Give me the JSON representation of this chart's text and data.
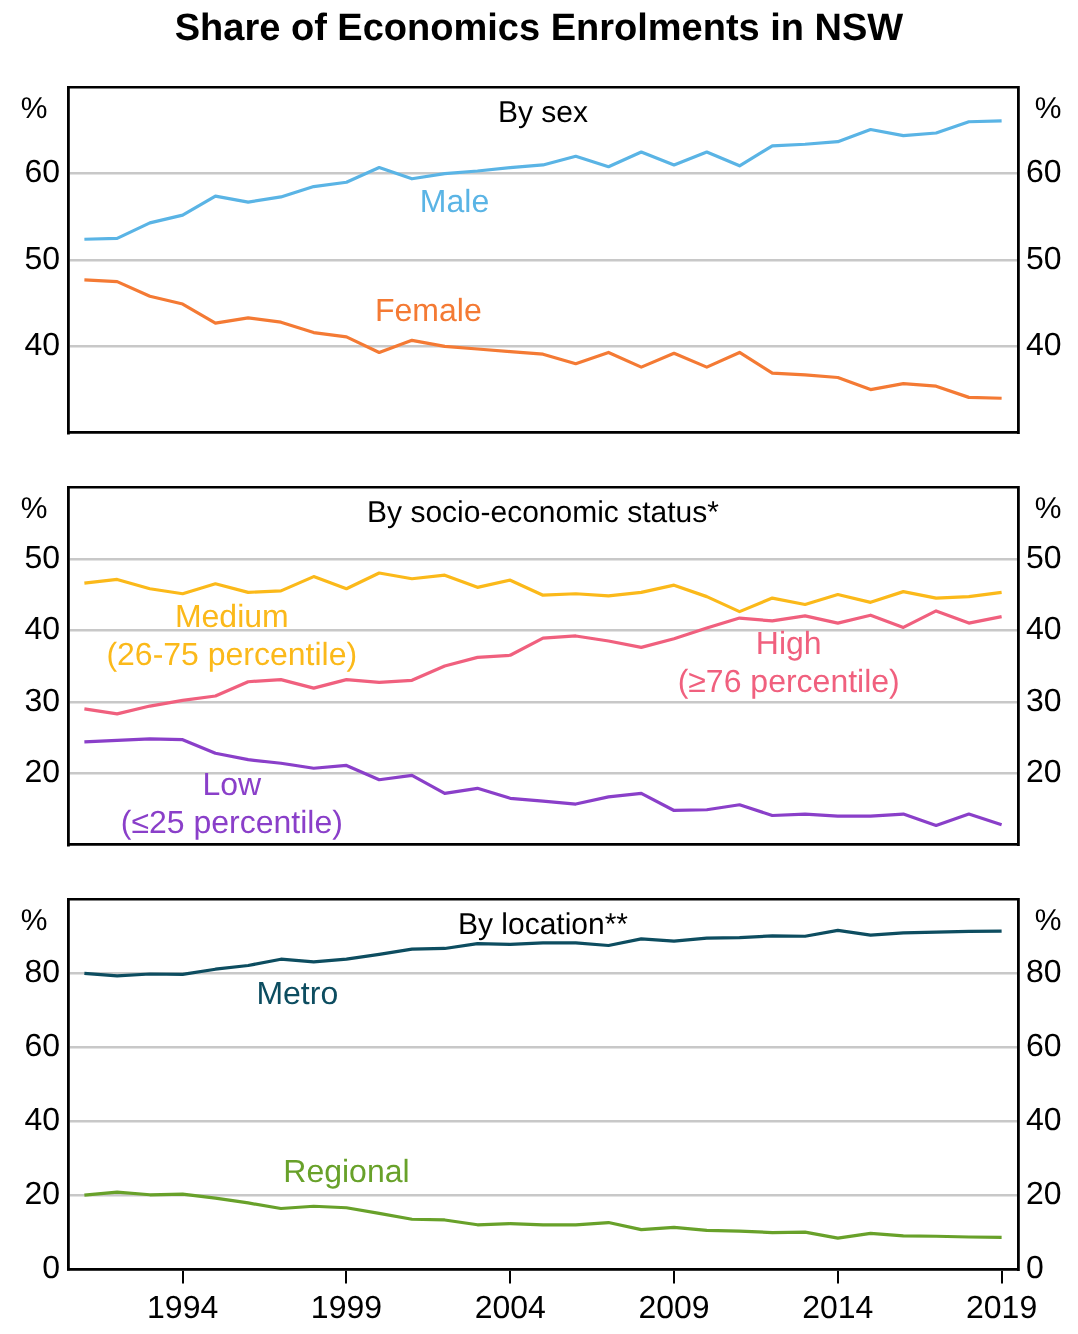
{
  "chart_data": [
    {
      "type": "line",
      "title": "Share of Economics Enrolments in NSW",
      "subtitle": "By sex",
      "ylabel": "%",
      "y2label": "%",
      "x": [
        1991,
        1992,
        1993,
        1994,
        1995,
        1996,
        1997,
        1998,
        1999,
        2000,
        2001,
        2002,
        2003,
        2004,
        2005,
        2006,
        2007,
        2008,
        2009,
        2010,
        2011,
        2012,
        2013,
        2014,
        2015,
        2016,
        2017,
        2018,
        2019
      ],
      "series": [
        {
          "name": "Male",
          "color": "#5ab4e5",
          "values": [
            52.4,
            52.5,
            54.3,
            55.2,
            57.4,
            56.7,
            57.3,
            58.5,
            59.0,
            60.7,
            59.4,
            60.0,
            60.3,
            60.7,
            61.0,
            62.0,
            60.8,
            62.5,
            61.0,
            62.5,
            60.9,
            63.2,
            63.4,
            63.7,
            65.1,
            64.4,
            64.7,
            66.0,
            66.1
          ]
        },
        {
          "name": "Female",
          "color": "#f47a34",
          "values": [
            47.7,
            47.5,
            45.8,
            44.9,
            42.7,
            43.3,
            42.8,
            41.6,
            41.1,
            39.3,
            40.7,
            40.0,
            39.7,
            39.4,
            39.1,
            38.0,
            39.3,
            37.6,
            39.2,
            37.6,
            39.3,
            36.9,
            36.7,
            36.4,
            35.0,
            35.7,
            35.4,
            34.1,
            34.0
          ]
        }
      ],
      "xlim": [
        1990.5,
        2019.5
      ],
      "ylim": [
        30,
        70
      ],
      "yticks": [
        40,
        50,
        60
      ],
      "y2lim": [
        30,
        70
      ],
      "y2ticks": [
        40,
        50,
        60
      ],
      "grid": "y",
      "tick_labels": "y"
    },
    {
      "type": "line",
      "title": "By socio-economic status*",
      "ylabel": "%",
      "y2label": "%",
      "x": [
        1991,
        1992,
        1993,
        1994,
        1995,
        1996,
        1997,
        1998,
        1999,
        2000,
        2001,
        2002,
        2003,
        2004,
        2005,
        2006,
        2007,
        2008,
        2009,
        2010,
        2011,
        2012,
        2013,
        2014,
        2015,
        2016,
        2017,
        2018,
        2019
      ],
      "series": [
        {
          "name": "Medium\n(26-75 percentile)",
          "color": "#fbb91a",
          "values": [
            46.6,
            47.1,
            45.8,
            45.1,
            46.5,
            45.3,
            45.5,
            47.5,
            45.8,
            48.0,
            47.2,
            47.7,
            46.0,
            47.0,
            44.9,
            45.1,
            44.8,
            45.3,
            46.3,
            44.7,
            42.6,
            44.5,
            43.6,
            45.0,
            43.9,
            45.4,
            44.5,
            44.7,
            45.3
          ]
        },
        {
          "name": "High\n(≥76 percentile)",
          "color": "#f0607e",
          "values": [
            29.0,
            28.3,
            29.4,
            30.2,
            30.8,
            32.8,
            33.1,
            31.9,
            33.1,
            32.7,
            33.0,
            35.0,
            36.2,
            36.5,
            38.9,
            39.2,
            38.5,
            37.6,
            38.8,
            40.3,
            41.7,
            41.3,
            42.0,
            41.0,
            42.1,
            40.4,
            42.7,
            41.0,
            41.9
          ]
        },
        {
          "name": "Low\n(≤25 percentile)",
          "color": "#8a3fc9",
          "values": [
            24.4,
            24.6,
            24.8,
            24.7,
            22.8,
            21.9,
            21.4,
            20.7,
            21.1,
            19.1,
            19.7,
            17.2,
            17.9,
            16.5,
            16.1,
            15.7,
            16.7,
            17.2,
            14.8,
            14.9,
            15.6,
            14.1,
            14.3,
            14.0,
            14.0,
            14.3,
            12.7,
            14.3,
            12.8
          ]
        }
      ],
      "xlim": [
        1990.5,
        2019.5
      ],
      "ylim": [
        10,
        60
      ],
      "yticks": [
        20,
        30,
        40,
        50
      ],
      "y2lim": [
        10,
        60
      ],
      "y2ticks": [
        20,
        30,
        40,
        50
      ],
      "grid": "y",
      "tick_labels": "y"
    },
    {
      "type": "line",
      "title": "By location**",
      "ylabel": "%",
      "y2label": "%",
      "x": [
        1991,
        1992,
        1993,
        1994,
        1995,
        1996,
        1997,
        1998,
        1999,
        2000,
        2001,
        2002,
        2003,
        2004,
        2005,
        2006,
        2007,
        2008,
        2009,
        2010,
        2011,
        2012,
        2013,
        2014,
        2015,
        2016,
        2017,
        2018,
        2019
      ],
      "series": [
        {
          "name": "Metro",
          "color": "#0d4d60",
          "values": [
            80.0,
            79.3,
            79.8,
            79.7,
            81.1,
            82.1,
            83.8,
            83.1,
            83.8,
            85.1,
            86.5,
            86.7,
            88.0,
            87.8,
            88.2,
            88.2,
            87.5,
            89.3,
            88.7,
            89.5,
            89.6,
            90.1,
            90.0,
            91.6,
            90.3,
            90.9,
            91.1,
            91.3,
            91.4
          ]
        },
        {
          "name": "Regional",
          "color": "#68a12a",
          "values": [
            20.1,
            20.9,
            20.2,
            20.4,
            19.3,
            18.0,
            16.5,
            17.1,
            16.7,
            15.2,
            13.6,
            13.4,
            12.1,
            12.4,
            12.1,
            12.1,
            12.7,
            10.8,
            11.4,
            10.6,
            10.4,
            10.0,
            10.1,
            8.5,
            9.8,
            9.1,
            9.0,
            8.8,
            8.7
          ]
        }
      ],
      "xlim": [
        1990.5,
        2019.5
      ],
      "xticks": [
        1994,
        1999,
        2004,
        2009,
        2014,
        2019
      ],
      "ylim": [
        0,
        100
      ],
      "yticks": [
        0,
        20,
        40,
        60,
        80
      ],
      "y2lim": [
        0,
        100
      ],
      "y2ticks": [
        0,
        20,
        40,
        60,
        80
      ],
      "grid": "y"
    }
  ]
}
